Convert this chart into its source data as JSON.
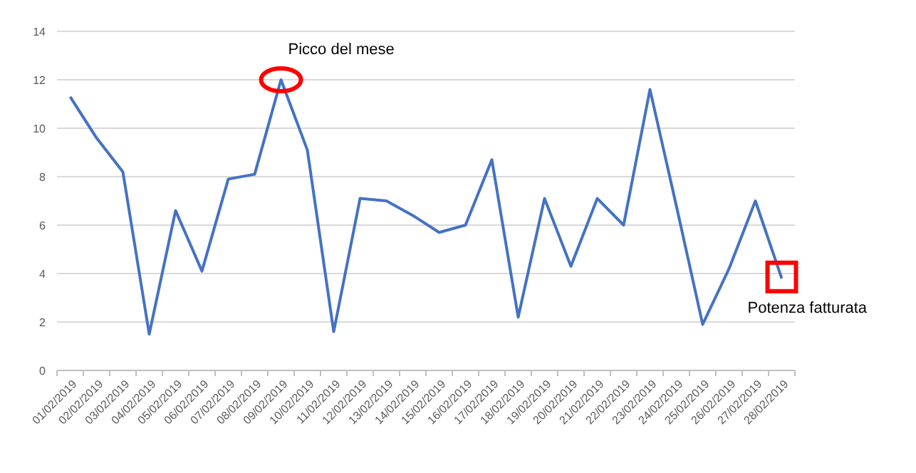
{
  "chart_data": {
    "type": "line",
    "categories": [
      "01/02/2019",
      "02/02/2019",
      "03/02/2019",
      "04/02/2019",
      "05/02/2019",
      "06/02/2019",
      "07/02/2019",
      "08/02/2019",
      "09/02/2019",
      "10/02/2019",
      "11/02/2019",
      "12/02/2019",
      "13/02/2019",
      "14/02/2019",
      "15/02/2019",
      "16/02/2019",
      "17/02/2019",
      "18/02/2019",
      "19/02/2019",
      "20/02/2019",
      "21/02/2019",
      "22/02/2019",
      "23/02/2019",
      "24/02/2019",
      "25/02/2019",
      "26/02/2019",
      "27/02/2019",
      "28/02/2019"
    ],
    "series": [
      {
        "color": "#4472c4",
        "values": [
          11.3,
          9.6,
          8.2,
          1.5,
          6.6,
          4.1,
          7.9,
          8.1,
          12.0,
          9.1,
          1.6,
          7.1,
          7.0,
          6.4,
          5.7,
          6.0,
          8.7,
          2.2,
          7.1,
          4.3,
          7.1,
          6.0,
          11.6,
          6.8,
          1.9,
          4.2,
          7.0,
          3.8
        ]
      }
    ],
    "ylim": [
      0,
      14
    ],
    "yticks": [
      0,
      2,
      4,
      6,
      8,
      10,
      12,
      14
    ],
    "grid": "y",
    "marker": "none",
    "line_style": "solid",
    "annotations": [
      {
        "text": "Picco del mese",
        "x": "09/02/2019",
        "y": 12
      },
      {
        "text": "Potenza fatturata",
        "x": "28/02/2019",
        "y": 3.8
      }
    ]
  }
}
